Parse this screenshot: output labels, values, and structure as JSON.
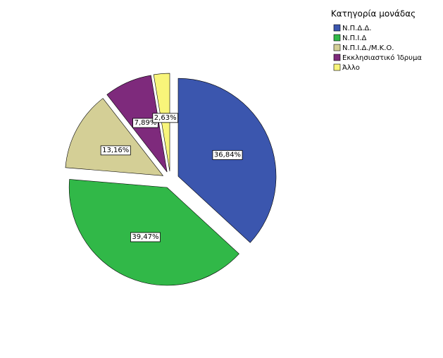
{
  "chart_data": {
    "type": "pie",
    "legend_title": "Κατηγορία μονάδας",
    "categories": [
      "Ν.Π.Δ.Δ.",
      "Ν.Π.Ι.Δ",
      "Ν.Π.Ι.Δ./Μ.Κ.Ο.",
      "Εκκλησιαστικό Ίδρυμα",
      "Άλλο"
    ],
    "values": [
      36.84,
      39.47,
      13.16,
      7.89,
      2.63
    ],
    "value_labels": [
      "36,84%",
      "39,47%",
      "13,16%",
      "7,89%",
      "2,63%"
    ],
    "colors": [
      "#3b56ae",
      "#31b848",
      "#d4cf96",
      "#7e2a7c",
      "#f8f57a"
    ],
    "legend": "top-right"
  }
}
